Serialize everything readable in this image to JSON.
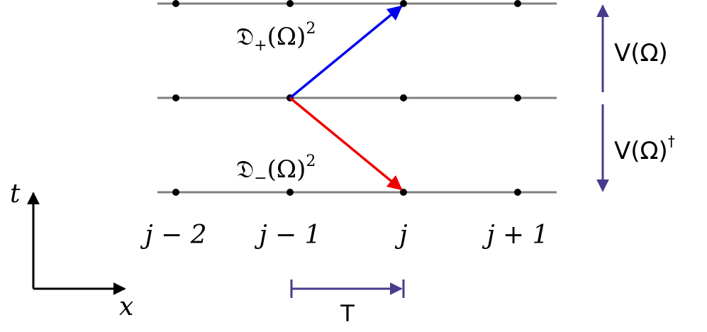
{
  "colors": {
    "lattice_line": "#808080",
    "node": "#000000",
    "forward_arrow": "#0000ee",
    "backward_arrow": "#ee0000",
    "annotation": "#4b3a8c",
    "axis": "#000000"
  },
  "axes": {
    "vertical_label": "t",
    "horizontal_label": "x"
  },
  "sites": [
    "j − 2",
    "j − 1",
    "j",
    "j + 1"
  ],
  "operators": {
    "forward": {
      "symbol": "𝔇",
      "subscript": "+",
      "argument": "(Ω)",
      "power": "2"
    },
    "backward": {
      "symbol": "𝔇",
      "subscript": "−",
      "argument": "(Ω)",
      "power": "2"
    }
  },
  "annotations": {
    "upper": {
      "text": "V(Ω)"
    },
    "lower": {
      "text": "V(Ω)",
      "superscript": "†"
    },
    "period": {
      "text": "T"
    }
  }
}
